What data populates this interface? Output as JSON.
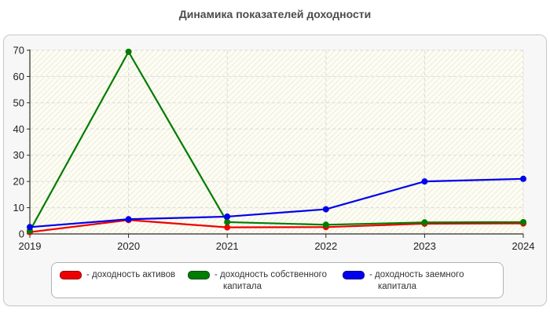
{
  "title": "Динамика показателей доходности",
  "legend": {
    "items": [
      {
        "label": "- доходность активов",
        "color": "#ee0000",
        "border": "#8f0000"
      },
      {
        "label": "- доходность собственного капитала",
        "color": "#007c00",
        "border": "#004a00"
      },
      {
        "label": "- доходность заемного капитала",
        "color": "#0000ee",
        "border": "#00008f"
      }
    ]
  },
  "chart_data": {
    "type": "line",
    "x": [
      "2019",
      "2020",
      "2021",
      "2022",
      "2023",
      "2024"
    ],
    "series": [
      {
        "name": "доходность активов",
        "color": "#ee0000",
        "values": [
          0.7,
          5.3,
          2.5,
          2.6,
          3.9,
          4.0
        ]
      },
      {
        "name": "доходность собственного капитала",
        "color": "#007c00",
        "values": [
          1.2,
          69.4,
          4.5,
          3.5,
          4.4,
          4.5
        ]
      },
      {
        "name": "доходность заемного капитала",
        "color": "#0000ee",
        "values": [
          2.6,
          5.6,
          6.6,
          9.4,
          20.0,
          21.0
        ]
      }
    ],
    "title": "Динамика показателей доходности",
    "xlabel": "",
    "ylabel": "",
    "ylim": [
      0,
      70
    ],
    "ytick_step": 10,
    "grid": true,
    "legend_position": "bottom",
    "plot_bg": "#fdfdf3",
    "hatch_color": "#ebebdf",
    "grid_color": "#d9d9d9",
    "axis_color": "#2b2b2b"
  }
}
